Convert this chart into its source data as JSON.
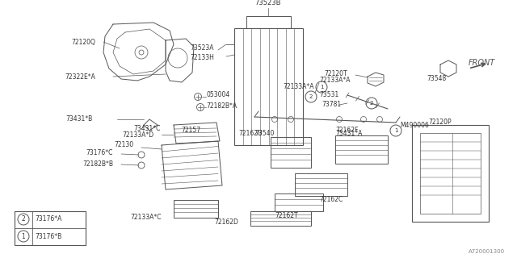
{
  "bg_color": "#ffffff",
  "line_color": "#555555",
  "text_color": "#333333",
  "part_number": "A720001300",
  "legend": [
    {
      "symbol": "1",
      "label": "73176*B"
    },
    {
      "symbol": "2",
      "label": "73176*A"
    }
  ]
}
